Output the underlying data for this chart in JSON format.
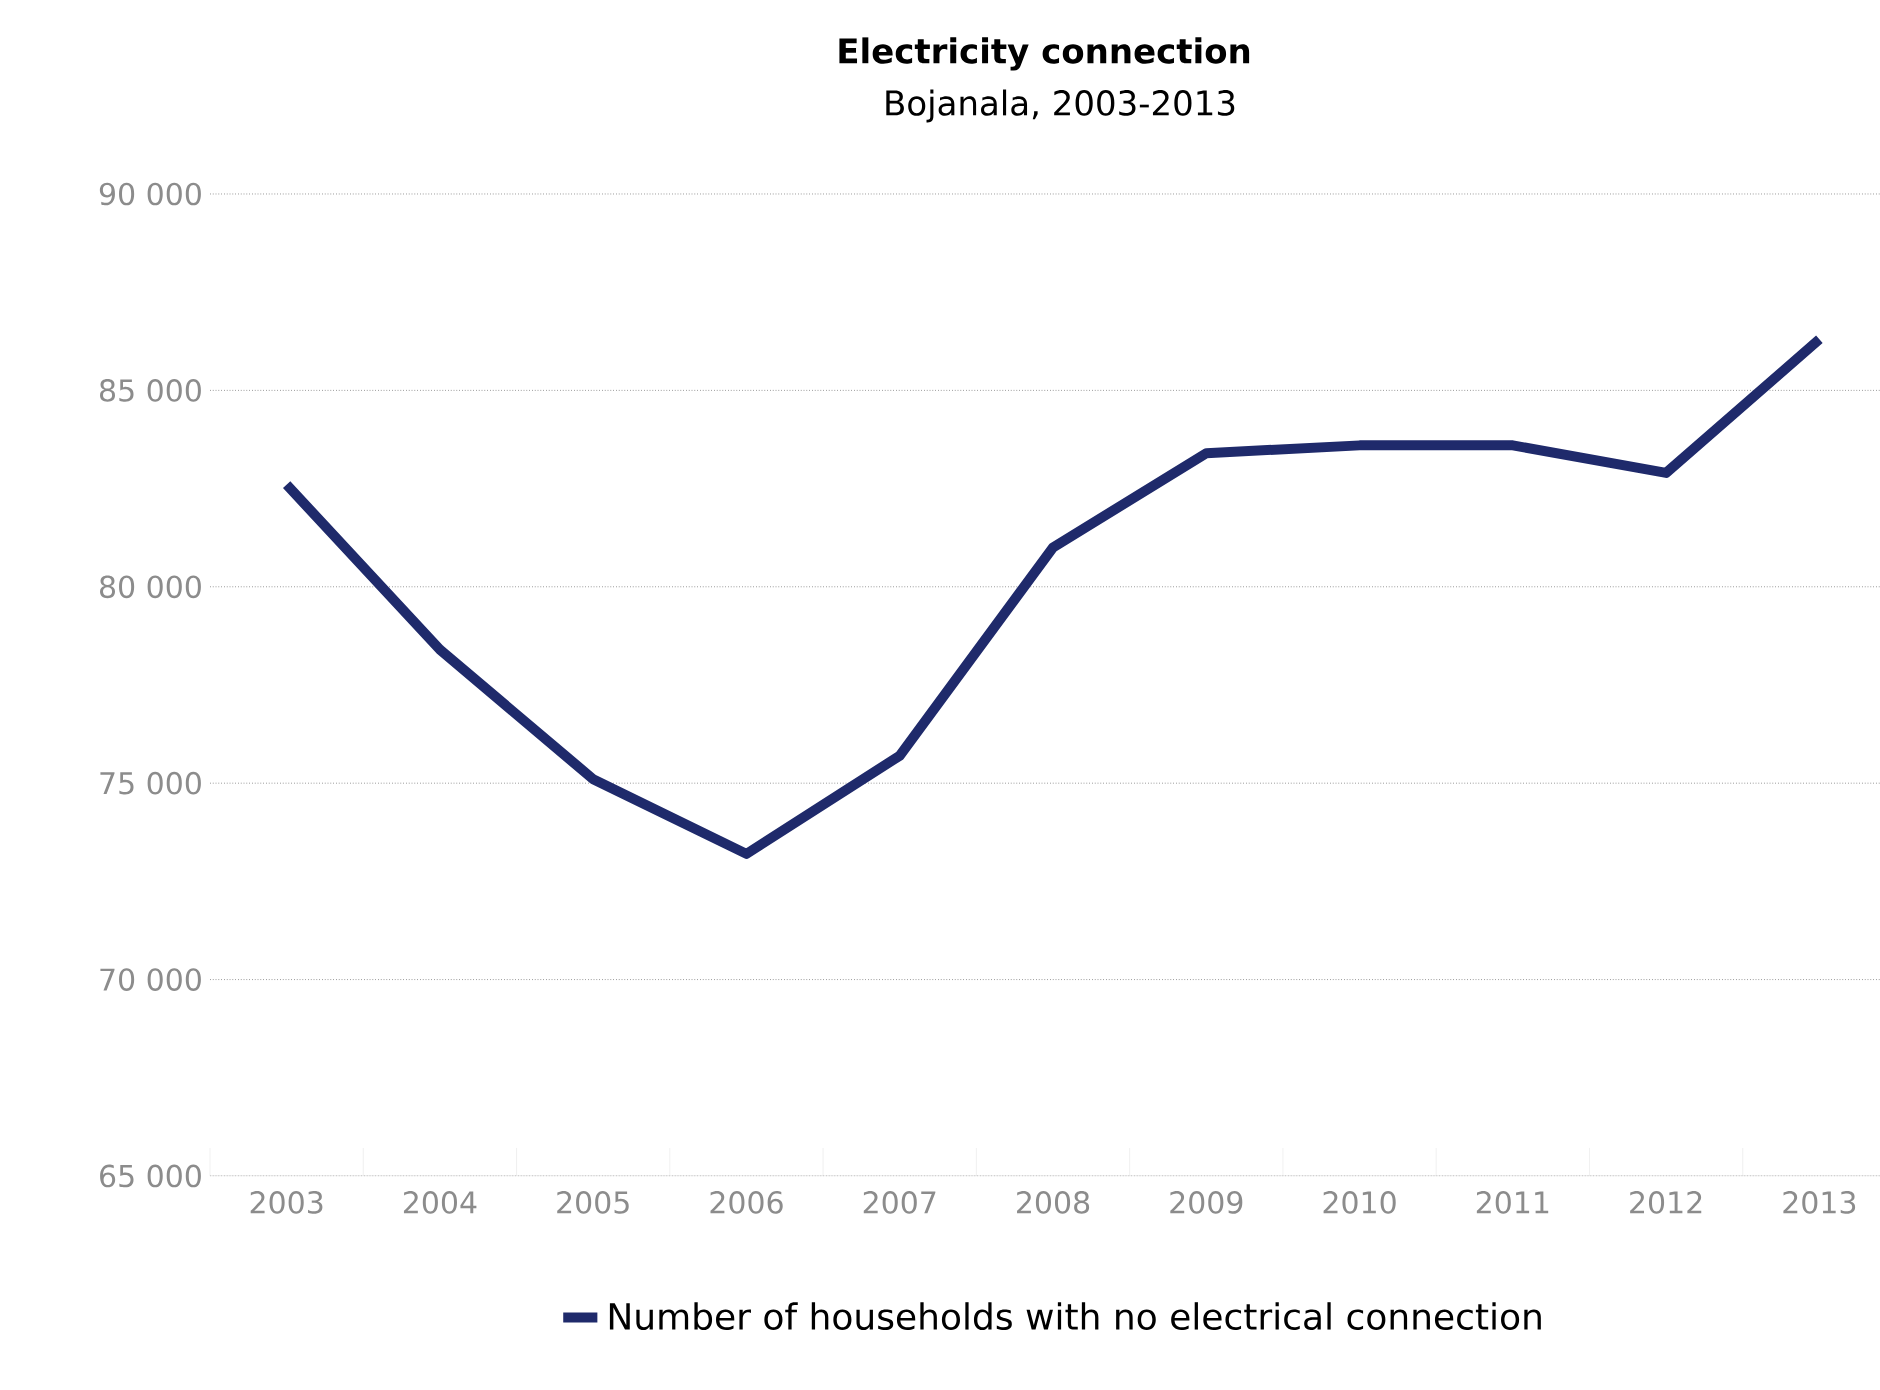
{
  "chart_data": {
    "type": "line",
    "title": "Electricity connection",
    "subtitle": "Bojanala, 2003-2013",
    "categories": [
      "2003",
      "2004",
      "2005",
      "2006",
      "2007",
      "2008",
      "2009",
      "2010",
      "2011",
      "2012",
      "2013"
    ],
    "series": [
      {
        "name": "Number of households with no electrical connection",
        "color": "#1f2a6b",
        "values": [
          82600,
          78400,
          75100,
          73200,
          75700,
          81000,
          83400,
          83600,
          83600,
          82900,
          86300
        ]
      }
    ],
    "ylim": [
      65000,
      90000
    ],
    "yticks": [
      {
        "value": 65000,
        "label": "65 000"
      },
      {
        "value": 70000,
        "label": "70 000"
      },
      {
        "value": 75000,
        "label": "75 000"
      },
      {
        "value": 80000,
        "label": "80 000"
      },
      {
        "value": 85000,
        "label": "85 000"
      },
      {
        "value": 90000,
        "label": "90 000"
      }
    ],
    "grid": "y",
    "legend": "bottom",
    "marker": "none",
    "line_style": "solid"
  }
}
